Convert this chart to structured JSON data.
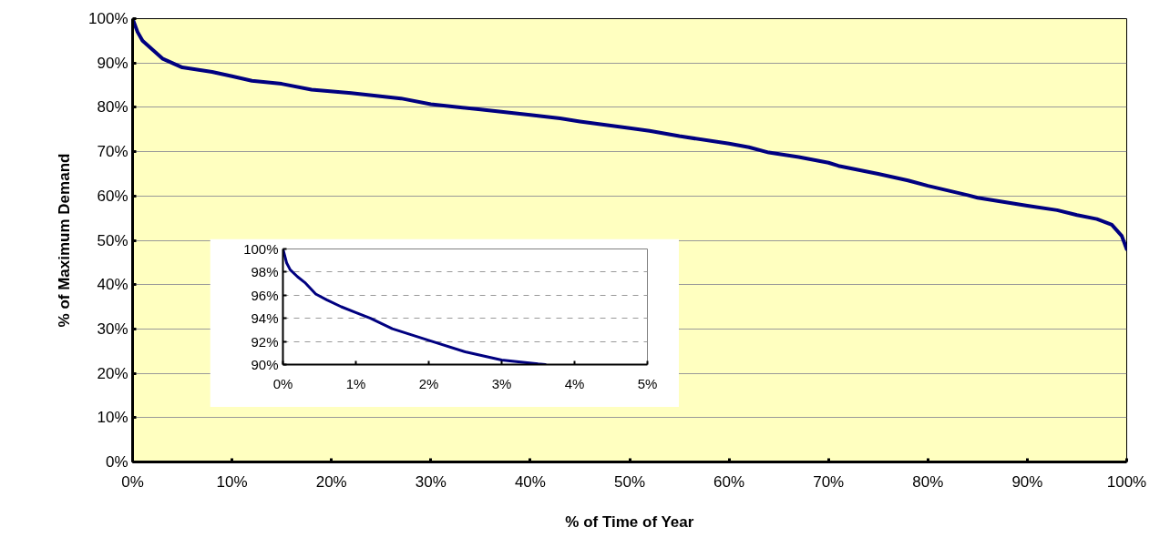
{
  "chart_data": [
    {
      "type": "line",
      "xlabel": "% of Time of Year",
      "ylabel": "% of Maximum Demand",
      "xlim": [
        0,
        100
      ],
      "ylim": [
        0,
        100
      ],
      "xticks": [
        {
          "value": 0,
          "label": "0%"
        },
        {
          "value": 10,
          "label": "10%"
        },
        {
          "value": 20,
          "label": "20%"
        },
        {
          "value": 30,
          "label": "30%"
        },
        {
          "value": 40,
          "label": "40%"
        },
        {
          "value": 50,
          "label": "50%"
        },
        {
          "value": 60,
          "label": "60%"
        },
        {
          "value": 70,
          "label": "70%"
        },
        {
          "value": 80,
          "label": "80%"
        },
        {
          "value": 90,
          "label": "90%"
        },
        {
          "value": 100,
          "label": "100%"
        }
      ],
      "yticks": [
        {
          "value": 0,
          "label": "0%"
        },
        {
          "value": 10,
          "label": "10%"
        },
        {
          "value": 20,
          "label": "20%"
        },
        {
          "value": 30,
          "label": "30%"
        },
        {
          "value": 40,
          "label": "40%"
        },
        {
          "value": 50,
          "label": "50%"
        },
        {
          "value": 60,
          "label": "60%"
        },
        {
          "value": 70,
          "label": "70%"
        },
        {
          "value": 80,
          "label": "80%"
        },
        {
          "value": 90,
          "label": "90%"
        },
        {
          "value": 100,
          "label": "100%"
        }
      ],
      "grid": "y",
      "series": [
        {
          "color": "#000080",
          "x": [
            0,
            0.5,
            1,
            2,
            3,
            5,
            8,
            10,
            12,
            15,
            18,
            22,
            27,
            30,
            35,
            40,
            43,
            45,
            50,
            52,
            55,
            60,
            62,
            64,
            67,
            70,
            71,
            75,
            78,
            80,
            84,
            85,
            90,
            93,
            95,
            97,
            98.5,
            99.5,
            100
          ],
          "values": [
            100,
            97,
            95,
            93,
            91,
            89,
            88,
            87,
            86,
            85.3,
            84,
            83.2,
            82,
            80.7,
            79.5,
            78.3,
            77.5,
            76.8,
            75.3,
            74.7,
            73.5,
            71.8,
            71,
            69.8,
            68.8,
            67.5,
            66.8,
            65,
            63.5,
            62.3,
            60.2,
            59.6,
            57.8,
            56.8,
            55.7,
            54.8,
            53.5,
            51,
            48
          ]
        }
      ]
    },
    {
      "type": "line",
      "xlim": [
        0,
        5
      ],
      "ylim": [
        90,
        100
      ],
      "xticks": [
        {
          "value": 0,
          "label": "0%"
        },
        {
          "value": 1,
          "label": "1%"
        },
        {
          "value": 2,
          "label": "2%"
        },
        {
          "value": 3,
          "label": "3%"
        },
        {
          "value": 4,
          "label": "4%"
        },
        {
          "value": 5,
          "label": "5%"
        }
      ],
      "yticks": [
        {
          "value": 90,
          "label": "90%"
        },
        {
          "value": 92,
          "label": "92%"
        },
        {
          "value": 94,
          "label": "94%"
        },
        {
          "value": 96,
          "label": "96%"
        },
        {
          "value": 98,
          "label": "98%"
        },
        {
          "value": 100,
          "label": "100%"
        }
      ],
      "grid": "y",
      "series": [
        {
          "color": "#000080",
          "x": [
            0,
            0.05,
            0.1,
            0.2,
            0.3,
            0.45,
            0.6,
            0.8,
            1,
            1.2,
            1.5,
            2,
            2.5,
            3,
            3.5,
            3.6
          ],
          "values": [
            100,
            98.8,
            98.2,
            97.6,
            97.1,
            96.1,
            95.6,
            95,
            94.5,
            94,
            93.1,
            92.1,
            91.1,
            90.4,
            90.05,
            90
          ]
        }
      ]
    }
  ]
}
